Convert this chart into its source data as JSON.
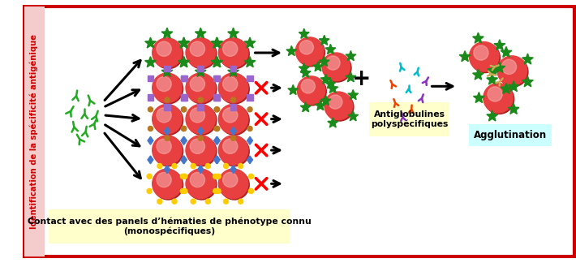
{
  "title_sidebar": "Identification de la spécificité antigénique",
  "sidebar_color": "#cc0000",
  "sidebar_bg": "#f5cccc",
  "border_color": "#cc0000",
  "bg_color": "#ffffff",
  "rbc_color": "#e84040",
  "rbc_highlight": "#f8b0b0",
  "rbc_shadow": "#b02020",
  "green_antigen": "#1a8a1a",
  "purple_antigen": "#9966cc",
  "gold_antigen": "#b87820",
  "blue_antigen": "#4477cc",
  "yellow_antigen": "#ffcc00",
  "antibody_green": "#22aa22",
  "cyan_ab": "#00bbcc",
  "purple_ab": "#8833bb",
  "orange_ab": "#ee4400",
  "tan_ab": "#ccaa55",
  "label_antiglobulines": "Antiglobulines\npolyspécifiques",
  "label_agglutination": "Agglutination",
  "label_contact": "Contact avec des panels d’hématies de phénotype connu\n(monospécifiques)",
  "contact_box_color": "#ffffcc",
  "agglutination_box_color": "#ccffff",
  "antiglobulines_box_color": "#ffffcc"
}
